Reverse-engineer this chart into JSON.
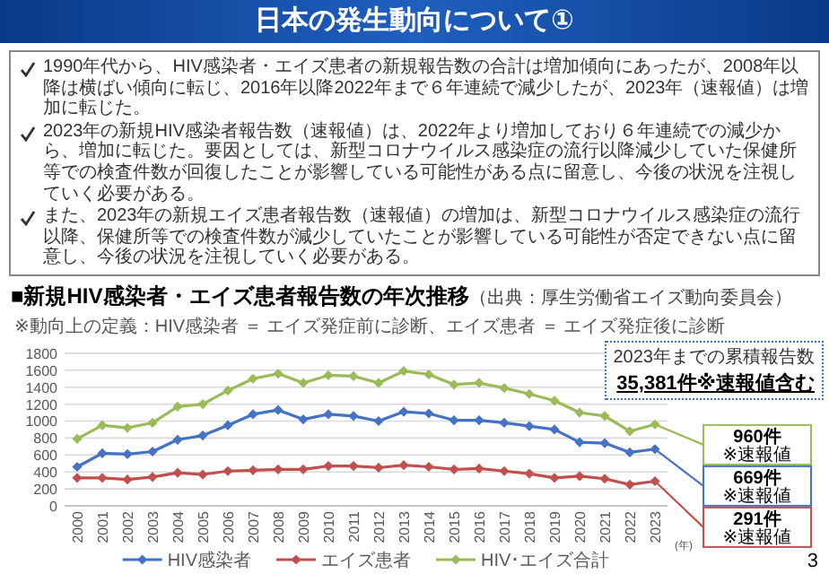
{
  "chart_data": {
    "type": "line",
    "title": "■新規HIV感染者・エイズ患者報告数の年次推移",
    "subtitle": "（出典：厚生労働省エイズ動向委員会）",
    "xlabel": "(年)",
    "categories": [
      "2000",
      "2001",
      "2002",
      "2003",
      "2004",
      "2005",
      "2006",
      "2007",
      "2008",
      "2009",
      "2010",
      "2011",
      "2012",
      "2013",
      "2014",
      "2015",
      "2016",
      "2017",
      "2018",
      "2019",
      "2020",
      "2021",
      "2022",
      "2023"
    ],
    "series": [
      {
        "name": "HIV感染者",
        "color": "#4472c4",
        "values": [
          460,
          620,
          610,
          640,
          780,
          830,
          950,
          1080,
          1130,
          1020,
          1080,
          1060,
          1000,
          1110,
          1090,
          1010,
          1010,
          980,
          940,
          900,
          750,
          740,
          630,
          669
        ]
      },
      {
        "name": "エイズ患者",
        "color": "#c0504d",
        "values": [
          330,
          330,
          310,
          340,
          390,
          370,
          410,
          420,
          430,
          430,
          470,
          470,
          450,
          480,
          460,
          430,
          440,
          410,
          380,
          330,
          350,
          320,
          250,
          291
        ]
      },
      {
        "name": "HIV･エイズ合計",
        "color": "#9bbb59",
        "values": [
          790,
          950,
          920,
          980,
          1170,
          1200,
          1360,
          1500,
          1560,
          1450,
          1540,
          1530,
          1450,
          1590,
          1550,
          1430,
          1450,
          1390,
          1320,
          1240,
          1100,
          1060,
          880,
          960
        ]
      }
    ],
    "ylim": [
      0,
      1800
    ],
    "yticks": [
      0,
      200,
      400,
      600,
      800,
      1000,
      1200,
      1400,
      1600,
      1800
    ],
    "grid": "y",
    "legend": "bottom",
    "marker": "diamond",
    "line_style": "solid",
    "annotations": [
      "日本の発生動向について①",
      "1990年代から、HIV感染者・エイズ患者の新規報告数の合計は増加傾向にあったが、2008年以降は横ばい傾向に転じ、2016年以降2022年まで６年連続で減少したが、2023年（速報値）は増加に転じた。",
      "2023年の新規HIV感染者報告数（速報値）は、2022年より増加しており６年連続での減少から、増加に転じた。要因としては、新型コロナウイルス感染症の流行以降減少していた保健所等での検査件数が回復したことが影響している可能性がある点に留意し、今後の状況を注視していく必要がある。",
      "また、2023年の新規エイズ患者報告数（速報値）の増加は、新型コロナウイルス感染症の流行以降、保健所等での検査件数が減少していたことが影響している可能性が否定できない点に留意し、今後の状況を注視していく必要がある。",
      "※動向上の定義：HIV感染者 ＝ エイズ発症前に診断、エイズ患者 ＝ エイズ発症後に診断",
      "2023年までの累積報告数",
      "35,381件※速報値含む",
      {
        "text": "960件\n※速報値",
        "x": "2023",
        "y": 960
      },
      {
        "text": "669件\n※速報値",
        "x": "2023",
        "y": 669
      },
      {
        "text": "291件\n※速報値",
        "x": "2023",
        "y": 291
      },
      "3"
    ]
  }
}
